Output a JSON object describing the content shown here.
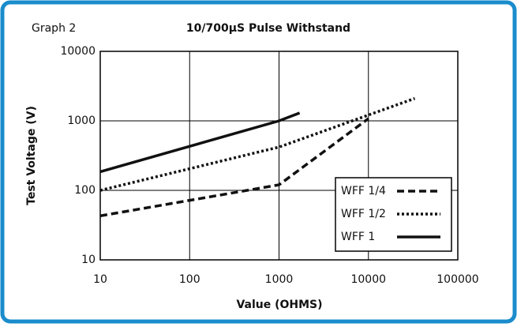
{
  "chart_data": {
    "type": "line",
    "label": "Graph 2",
    "title": "10/700µS Pulse Withstand",
    "xlabel": "Value (OHMS)",
    "ylabel": "Test Voltage (V)",
    "xscale": "log",
    "yscale": "log",
    "xlim": [
      10,
      100000
    ],
    "ylim": [
      10,
      10000
    ],
    "xticks": [
      10,
      100,
      1000,
      10000,
      100000
    ],
    "yticks": [
      10,
      100,
      1000,
      10000
    ],
    "grid": true,
    "legend": "lower right",
    "series": [
      {
        "name": "WFF 1/4",
        "color": "#111111",
        "line_style": "dashed",
        "x": [
          10,
          1000,
          10000
        ],
        "values": [
          43,
          120,
          1080
        ]
      },
      {
        "name": "WFF 1/2",
        "color": "#111111",
        "line_style": "dotted",
        "x": [
          10,
          1000,
          33000
        ],
        "values": [
          100,
          420,
          2100
        ]
      },
      {
        "name": "WFF 1",
        "color": "#111111",
        "line_style": "solid",
        "x": [
          10,
          1000,
          1700
        ],
        "values": [
          185,
          1000,
          1300
        ]
      }
    ]
  }
}
